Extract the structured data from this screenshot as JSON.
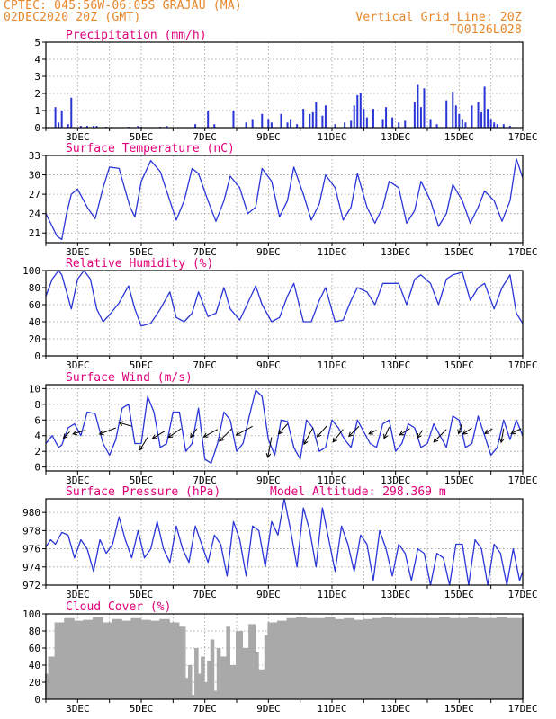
{
  "header": {
    "line1_left": "CPTEC:   045:56W-06:05S   GRAJAU (MA)",
    "line2_left": "02DEC2020 20Z (GMT)",
    "line1_right": "Vertical Grid Line: 20Z",
    "line2_right": "TQ0126L028"
  },
  "colors": {
    "header": "#e8862a",
    "title": "#e0007a",
    "line": "#2a35d8",
    "bar": "#2a35d8",
    "cloud": "#a9a9a9"
  },
  "x_axis": {
    "start_day": 2,
    "end_day": 17,
    "tick_labels": [
      "3DEC",
      "5DEC",
      "7DEC",
      "9DEC",
      "11DEC",
      "13DEC",
      "15DEC",
      "17DEC"
    ],
    "tick_days": [
      3,
      5,
      7,
      9,
      11,
      13,
      15,
      17
    ]
  },
  "chart_data": [
    {
      "type": "bar",
      "title": "Precipitation (mm/h)",
      "ylim": [
        0,
        5
      ],
      "yticks": [
        0,
        1,
        2,
        3,
        4,
        5
      ],
      "series": [
        {
          "x": [
            2.3,
            2.4,
            2.5,
            2.7,
            2.8,
            3.1,
            3.3,
            3.5,
            3.6,
            3.9,
            4.6,
            4.9,
            5.0,
            5.6,
            5.8,
            6.7,
            7.1,
            7.3,
            7.9,
            8.3,
            8.5,
            8.8,
            9.0,
            9.1,
            9.4,
            9.6,
            9.7,
            9.9,
            10.1,
            10.3,
            10.4,
            10.5,
            10.7,
            10.8,
            11.1,
            11.4,
            11.6,
            11.7,
            11.8,
            11.9,
            12.0,
            12.1,
            12.3,
            12.6,
            12.7,
            12.9,
            13.1,
            13.3,
            13.6,
            13.7,
            13.8,
            13.9,
            14.1,
            14.3,
            14.6,
            14.8,
            14.9,
            15.0,
            15.1,
            15.2,
            15.4,
            15.6,
            15.7,
            15.8,
            15.9,
            16.0,
            16.1,
            16.2,
            16.4,
            16.6
          ],
          "y": [
            1.2,
            0.3,
            1.0,
            0.2,
            1.75,
            0.1,
            0.1,
            0.1,
            0.1,
            0.05,
            0.05,
            0.1,
            0.05,
            0.05,
            0.1,
            0.2,
            1.0,
            0.2,
            1.0,
            0.3,
            0.5,
            0.8,
            0.5,
            0.3,
            0.8,
            0.3,
            0.5,
            0.2,
            1.1,
            0.8,
            0.9,
            1.5,
            0.7,
            1.3,
            0.2,
            0.3,
            0.4,
            1.3,
            1.9,
            2.0,
            1.1,
            0.6,
            1.1,
            0.5,
            1.2,
            0.6,
            0.3,
            0.4,
            1.5,
            2.5,
            1.2,
            2.3,
            0.5,
            0.2,
            1.6,
            2.1,
            1.3,
            0.8,
            0.5,
            0.3,
            1.3,
            1.5,
            0.9,
            2.4,
            1.1,
            0.5,
            0.3,
            0.2,
            0.2,
            0.1
          ]
        }
      ]
    },
    {
      "type": "line",
      "title": "Surface Temperature (nC)",
      "ylim": [
        19.5,
        33
      ],
      "yticks": [
        21,
        24,
        27,
        30,
        33
      ],
      "series": [
        {
          "x": [
            2.0,
            2.2,
            2.35,
            2.5,
            2.65,
            2.8,
            3.0,
            3.3,
            3.55,
            3.8,
            4.0,
            4.3,
            4.65,
            4.8,
            5.0,
            5.3,
            5.6,
            5.9,
            6.1,
            6.35,
            6.6,
            6.8,
            7.1,
            7.35,
            7.6,
            7.8,
            8.1,
            8.35,
            8.6,
            8.8,
            9.1,
            9.35,
            9.6,
            9.8,
            10.1,
            10.35,
            10.6,
            10.8,
            11.1,
            11.35,
            11.6,
            11.8,
            12.1,
            12.35,
            12.6,
            12.8,
            13.1,
            13.35,
            13.6,
            13.8,
            14.1,
            14.35,
            14.6,
            14.8,
            15.1,
            15.35,
            15.6,
            15.8,
            16.1,
            16.35,
            16.6,
            16.8,
            17.0
          ],
          "y": [
            24.0,
            22.0,
            20.5,
            20.0,
            24.0,
            27.0,
            27.8,
            25.0,
            23.2,
            28.0,
            31.2,
            31.0,
            25.0,
            23.5,
            29.0,
            32.2,
            30.5,
            26.0,
            23.0,
            26.0,
            31.0,
            30.2,
            26.0,
            22.8,
            26.0,
            29.8,
            28.0,
            24.0,
            25.0,
            31.0,
            29.0,
            23.5,
            26.0,
            31.2,
            27.0,
            23.0,
            25.5,
            30.0,
            28.0,
            23.0,
            25.0,
            30.2,
            25.0,
            22.5,
            25.0,
            29.0,
            28.0,
            22.5,
            24.5,
            29.0,
            26.0,
            22.0,
            24.0,
            28.5,
            26.0,
            22.5,
            25.0,
            27.5,
            26.0,
            22.8,
            26.0,
            32.5,
            29.5
          ]
        }
      ]
    },
    {
      "type": "line",
      "title": "Relative Humidity (%)",
      "ylim": [
        0,
        100
      ],
      "yticks": [
        0,
        20,
        40,
        60,
        80,
        100
      ],
      "series": [
        {
          "x": [
            2.0,
            2.2,
            2.4,
            2.5,
            2.65,
            2.8,
            3.0,
            3.2,
            3.4,
            3.6,
            3.8,
            4.0,
            4.3,
            4.6,
            4.8,
            5.0,
            5.3,
            5.6,
            5.9,
            6.1,
            6.35,
            6.6,
            6.8,
            7.1,
            7.35,
            7.6,
            7.8,
            8.1,
            8.35,
            8.6,
            8.8,
            9.1,
            9.35,
            9.6,
            9.8,
            10.1,
            10.35,
            10.6,
            10.8,
            11.1,
            11.35,
            11.6,
            11.8,
            12.1,
            12.35,
            12.6,
            12.8,
            13.1,
            13.35,
            13.6,
            13.8,
            14.1,
            14.35,
            14.6,
            14.8,
            15.1,
            15.35,
            15.6,
            15.8,
            16.1,
            16.35,
            16.6,
            16.8,
            17.0
          ],
          "y": [
            70,
            90,
            100,
            95,
            75,
            55,
            90,
            100,
            90,
            55,
            40,
            48,
            62,
            82,
            55,
            35,
            38,
            55,
            75,
            45,
            40,
            50,
            75,
            46,
            50,
            80,
            55,
            42,
            62,
            82,
            60,
            40,
            45,
            70,
            85,
            40,
            40,
            65,
            80,
            40,
            42,
            65,
            80,
            75,
            60,
            85,
            85,
            85,
            60,
            90,
            95,
            85,
            60,
            90,
            95,
            98,
            65,
            80,
            85,
            55,
            80,
            95,
            50,
            38
          ]
        }
      ]
    },
    {
      "type": "line",
      "title": "Surface Wind (m/s)",
      "ylim": [
        -0.5,
        10.5
      ],
      "yticks": [
        0,
        2,
        4,
        6,
        8,
        10
      ],
      "series": [
        {
          "x": [
            2.0,
            2.2,
            2.4,
            2.5,
            2.7,
            2.9,
            3.1,
            3.3,
            3.55,
            3.8,
            4.0,
            4.2,
            4.4,
            4.6,
            4.8,
            5.0,
            5.2,
            5.4,
            5.6,
            5.8,
            6.0,
            6.2,
            6.4,
            6.6,
            6.8,
            7.0,
            7.2,
            7.4,
            7.6,
            7.8,
            8.0,
            8.2,
            8.4,
            8.6,
            8.8,
            9.0,
            9.2,
            9.4,
            9.6,
            9.8,
            10.0,
            10.2,
            10.4,
            10.6,
            10.8,
            11.0,
            11.2,
            11.4,
            11.6,
            11.8,
            12.0,
            12.2,
            12.4,
            12.6,
            12.8,
            13.0,
            13.2,
            13.4,
            13.6,
            13.8,
            14.0,
            14.2,
            14.4,
            14.6,
            14.8,
            15.0,
            15.2,
            15.4,
            15.6,
            15.8,
            16.0,
            16.2,
            16.4,
            16.6,
            16.8,
            17.0
          ],
          "y": [
            3.0,
            4.0,
            2.5,
            2.8,
            5.0,
            5.5,
            4.0,
            7.0,
            6.8,
            3.0,
            1.5,
            3.5,
            7.5,
            8.0,
            3.0,
            3.0,
            9.0,
            7.0,
            2.5,
            3.0,
            7.0,
            7.0,
            2.0,
            3.0,
            7.5,
            1.0,
            0.5,
            3.0,
            7.0,
            6.0,
            2.0,
            3.0,
            6.5,
            9.8,
            9.0,
            3.5,
            1.5,
            6.0,
            5.8,
            2.5,
            1.0,
            6.0,
            5.0,
            2.0,
            2.5,
            6.0,
            5.0,
            3.5,
            2.5,
            6.0,
            4.5,
            3.0,
            2.5,
            5.5,
            6.0,
            2.0,
            3.0,
            5.5,
            5.0,
            2.5,
            3.0,
            5.5,
            4.0,
            2.5,
            6.5,
            6.0,
            2.5,
            3.0,
            6.5,
            4.0,
            1.5,
            2.5,
            6.0,
            3.5,
            6.0,
            4.0
          ]
        }
      ],
      "arrows": [
        {
          "x": 2.75,
          "y": 4.5,
          "u": -0.5,
          "v": -0.5
        },
        {
          "x": 3.25,
          "y": 4.7,
          "u": -1.0,
          "v": -0.3
        },
        {
          "x": 4.2,
          "y": 5.0,
          "u": -1.3,
          "v": -0.5
        },
        {
          "x": 4.7,
          "y": 5.2,
          "u": -1.0,
          "v": 0.3
        },
        {
          "x": 5.2,
          "y": 3.8,
          "u": -0.6,
          "v": -1.0
        },
        {
          "x": 5.75,
          "y": 4.6,
          "u": -1.0,
          "v": -0.6
        },
        {
          "x": 6.25,
          "y": 4.9,
          "u": -1.0,
          "v": -0.7
        },
        {
          "x": 6.75,
          "y": 4.9,
          "u": -0.5,
          "v": -0.7
        },
        {
          "x": 7.4,
          "y": 4.8,
          "u": -1.1,
          "v": -0.6
        },
        {
          "x": 7.85,
          "y": 4.9,
          "u": -1.0,
          "v": -1.0
        },
        {
          "x": 8.5,
          "y": 5.2,
          "u": -1.3,
          "v": -0.7
        },
        {
          "x": 9.1,
          "y": 3.8,
          "u": -0.3,
          "v": -1.6
        },
        {
          "x": 9.6,
          "y": 5.5,
          "u": -0.7,
          "v": -0.8
        },
        {
          "x": 10.4,
          "y": 5.0,
          "u": -0.7,
          "v": -1.3
        },
        {
          "x": 10.85,
          "y": 5.3,
          "u": -0.8,
          "v": -0.9
        },
        {
          "x": 11.35,
          "y": 4.8,
          "u": -0.8,
          "v": -1.0
        },
        {
          "x": 11.85,
          "y": 5.2,
          "u": -0.8,
          "v": -0.8
        },
        {
          "x": 12.4,
          "y": 4.7,
          "u": -0.6,
          "v": -0.3
        },
        {
          "x": 12.8,
          "y": 5.1,
          "u": -0.4,
          "v": -0.9
        },
        {
          "x": 13.45,
          "y": 4.9,
          "u": -0.8,
          "v": -0.5
        },
        {
          "x": 13.85,
          "y": 4.7,
          "u": -0.4,
          "v": -0.6
        },
        {
          "x": 14.6,
          "y": 4.8,
          "u": -1.0,
          "v": -1.0
        },
        {
          "x": 15.1,
          "y": 5.7,
          "u": -0.3,
          "v": -0.9
        },
        {
          "x": 15.4,
          "y": 5.0,
          "u": -0.7,
          "v": -0.5
        },
        {
          "x": 16.05,
          "y": 4.9,
          "u": -0.6,
          "v": -0.4
        },
        {
          "x": 16.4,
          "y": 4.9,
          "u": -0.2,
          "v": -1.1
        },
        {
          "x": 16.95,
          "y": 4.9,
          "u": -0.8,
          "v": -0.4
        }
      ]
    },
    {
      "type": "line",
      "title": "Surface Pressure (hPa)",
      "annotation": "Model Altitude: 298.369 m",
      "ylim": [
        972,
        981.5
      ],
      "yticks": [
        972,
        974,
        976,
        978,
        980
      ],
      "series": [
        {
          "x": [
            2.0,
            2.15,
            2.3,
            2.5,
            2.7,
            2.9,
            3.1,
            3.3,
            3.5,
            3.7,
            3.9,
            4.1,
            4.3,
            4.5,
            4.7,
            4.9,
            5.1,
            5.3,
            5.5,
            5.7,
            5.9,
            6.1,
            6.3,
            6.5,
            6.7,
            6.9,
            7.1,
            7.3,
            7.5,
            7.7,
            7.9,
            8.1,
            8.3,
            8.5,
            8.7,
            8.9,
            9.1,
            9.3,
            9.5,
            9.7,
            9.9,
            10.1,
            10.3,
            10.5,
            10.7,
            10.9,
            11.1,
            11.3,
            11.5,
            11.7,
            11.9,
            12.1,
            12.3,
            12.5,
            12.7,
            12.9,
            13.1,
            13.3,
            13.5,
            13.7,
            13.9,
            14.1,
            14.3,
            14.5,
            14.7,
            14.9,
            15.1,
            15.3,
            15.5,
            15.7,
            15.9,
            16.1,
            16.3,
            16.5,
            16.7,
            16.9,
            17.0
          ],
          "y": [
            976.2,
            977.0,
            976.5,
            977.8,
            977.5,
            975.0,
            977.0,
            976.0,
            973.5,
            977.0,
            975.5,
            976.5,
            979.5,
            977.0,
            975.0,
            978.0,
            975.0,
            976.0,
            979.0,
            976.0,
            974.5,
            978.5,
            976.0,
            974.5,
            978.5,
            976.5,
            974.5,
            977.5,
            976.5,
            973.0,
            979.0,
            977.0,
            973.0,
            978.5,
            978.0,
            974.0,
            979.0,
            977.5,
            981.5,
            978.0,
            974.0,
            980.5,
            978.0,
            974.0,
            980.5,
            977.0,
            973.5,
            978.5,
            976.5,
            973.5,
            977.5,
            976.5,
            972.5,
            978.0,
            976.0,
            973.0,
            976.5,
            975.5,
            972.5,
            976.0,
            975.5,
            972.0,
            975.5,
            975.0,
            972.0,
            976.5,
            976.5,
            972.0,
            977.0,
            976.0,
            972.0,
            976.5,
            975.5,
            972.0,
            976.0,
            972.5,
            973.5
          ]
        }
      ]
    },
    {
      "type": "bar",
      "title": "Cloud Cover (%)",
      "ylim": [
        0,
        100
      ],
      "yticks": [
        0,
        20,
        40,
        60,
        80,
        100
      ],
      "series": [
        {
          "x": [
            2.0,
            2.1,
            2.3,
            2.6,
            2.9,
            3.2,
            3.5,
            3.8,
            4.1,
            4.4,
            4.7,
            5.0,
            5.3,
            5.6,
            5.9,
            6.2,
            6.4,
            6.5,
            6.6,
            6.7,
            6.8,
            6.9,
            7.0,
            7.1,
            7.2,
            7.3,
            7.4,
            7.5,
            7.7,
            7.8,
            8.0,
            8.2,
            8.4,
            8.6,
            8.7,
            8.9,
            9.0,
            9.3,
            9.6,
            9.9,
            10.2,
            10.5,
            10.8,
            11.1,
            11.4,
            11.7,
            12.0,
            12.3,
            12.6,
            12.9,
            13.2,
            13.5,
            13.8,
            14.1,
            14.4,
            14.7,
            15.0,
            15.3,
            15.6,
            15.9,
            16.2,
            16.5,
            16.8,
            17.0
          ],
          "y": [
            30,
            50,
            90,
            95,
            92,
            93,
            96,
            90,
            94,
            92,
            95,
            93,
            92,
            94,
            90,
            85,
            25,
            40,
            5,
            60,
            30,
            50,
            20,
            45,
            70,
            10,
            60,
            50,
            85,
            40,
            80,
            60,
            88,
            55,
            35,
            75,
            90,
            92,
            95,
            96,
            95,
            95,
            96,
            94,
            95,
            93,
            94,
            95,
            96,
            95,
            95,
            95,
            95,
            95,
            96,
            95,
            95,
            96,
            95,
            95,
            96,
            95,
            95,
            96
          ]
        }
      ]
    }
  ]
}
